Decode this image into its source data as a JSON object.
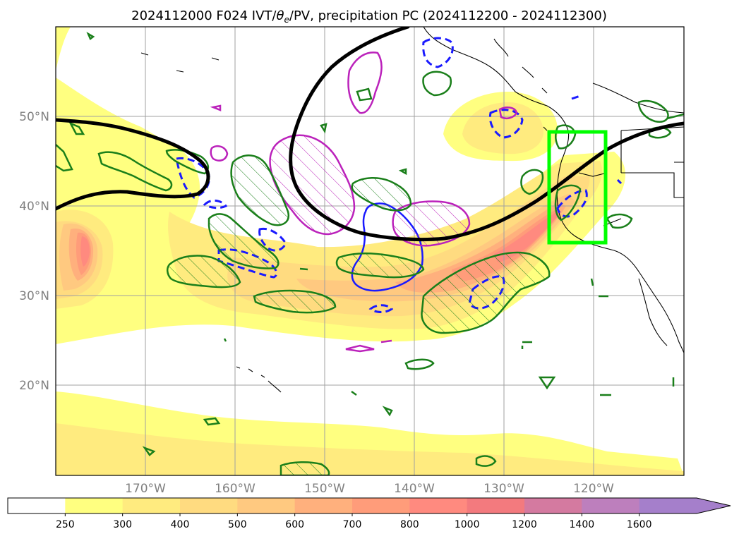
{
  "chart_data": {
    "type": "heatmap",
    "title": "2024112000 F024 IVT/θe/PV, precipitation PC (2024112200 - 2024112300)",
    "title_parts": {
      "prefix": "2024112000 F024 IVT/",
      "theta": "θ",
      "theta_sub": "e",
      "suffix": "/PV, precipitation PC (2024112200 - 2024112300)"
    },
    "map": {
      "lon_range": [
        -180,
        -110
      ],
      "lat_range": [
        10,
        60
      ],
      "x_ticks": [
        {
          "value": -170,
          "label": "170°W"
        },
        {
          "value": -160,
          "label": "160°W"
        },
        {
          "value": -150,
          "label": "150°W"
        },
        {
          "value": -140,
          "label": "140°W"
        },
        {
          "value": -130,
          "label": "130°W"
        },
        {
          "value": -120,
          "label": "120°W"
        }
      ],
      "y_ticks": [
        {
          "value": 50,
          "label": "50°N"
        },
        {
          "value": 40,
          "label": "40°N"
        },
        {
          "value": 30,
          "label": "30°N"
        },
        {
          "value": 20,
          "label": "20°N"
        }
      ],
      "grid": true,
      "highlight_box": {
        "lon_min": -125,
        "lon_max": -119.5,
        "lat_min": 36,
        "lat_max": 48,
        "color": "#00ff00"
      }
    },
    "ivt_field": {
      "units": "IVT",
      "features": [
        {
          "name": "atmospheric river core",
          "lon_start": -167,
          "lat_start": 33.5,
          "lon_end": -121,
          "lat_end": 43,
          "peak": 1000
        },
        {
          "name": "western maximum",
          "lon": -176,
          "lat": 36,
          "peak": 1000
        },
        {
          "name": "gulf of alaska plume",
          "lon": -130,
          "lat": 50,
          "peak": 400
        },
        {
          "name": "southern band",
          "lon": -145,
          "lat": 14,
          "peak": 400
        }
      ]
    },
    "contours": {
      "thick_black": "PV / theta-e boundary",
      "magenta": "positive anomaly (hatched)",
      "green": "precipitation PC (hatched)",
      "blue_dashed": "negative anomaly"
    },
    "colorbar": {
      "levels": [
        250,
        300,
        400,
        500,
        600,
        700,
        800,
        1000,
        1200,
        1400,
        1600
      ],
      "colors": [
        "#ffffff",
        "#ffff80",
        "#ffeb7f",
        "#ffdb80",
        "#ffc980",
        "#ffb07d",
        "#ff9c7a",
        "#ff8a7f",
        "#f37a7e",
        "#d47aa0",
        "#bd7fbd",
        "#a57fcb"
      ],
      "extend": "max",
      "orientation": "horizontal",
      "placement": "bottom"
    }
  }
}
